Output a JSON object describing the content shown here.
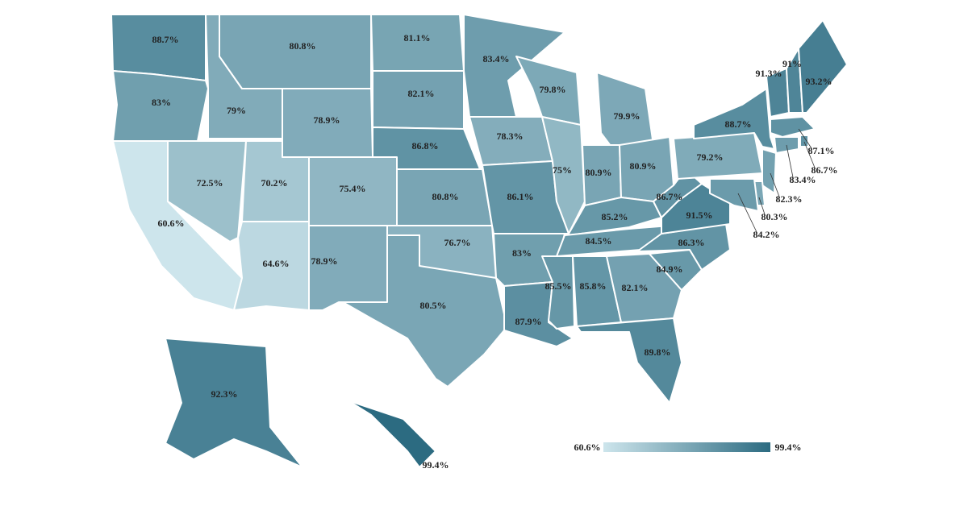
{
  "chart_data": {
    "type": "choropleth",
    "values": [
      88.7,
      83,
      60.6,
      72.5,
      79,
      80.8,
      78.9,
      70.2,
      64.6,
      75.4,
      78.9,
      81.1,
      82.1,
      86.8,
      80.8,
      76.7,
      80.5,
      83.4,
      78.3,
      86.1,
      83,
      87.9,
      79.8,
      75,
      79.9,
      80.9,
      80.9,
      85.2,
      84.5,
      85.5,
      85.8,
      82.1,
      89.8,
      84.9,
      86.3,
      91.5,
      86.7,
      79.2,
      88.7,
      91.3,
      91,
      93.2,
      87.1,
      86.7,
      83.4,
      82.3,
      80.3,
      84.2,
      92.3,
      99.4
    ],
    "value_labels": [
      "88.7%",
      "83%",
      "60.6%",
      "72.5%",
      "79%",
      "80.8%",
      "78.9%",
      "70.2%",
      "64.6%",
      "75.4%",
      "78.9%",
      "81.1%",
      "82.1%",
      "86.8%",
      "80.8%",
      "76.7%",
      "80.5%",
      "83.4%",
      "78.3%",
      "86.1%",
      "83%",
      "87.9%",
      "79.8%",
      "75%",
      "79.9%",
      "80.9%",
      "80.9%",
      "85.2%",
      "84.5%",
      "85.5%",
      "85.8%",
      "82.1%",
      "89.8%",
      "84.9%",
      "86.3%",
      "91.5%",
      "86.7%",
      "79.2%",
      "88.7%",
      "91.3%",
      "91%",
      "93.2%",
      "87.1%",
      "86.7%",
      "83.4%",
      "82.3%",
      "80.3%",
      "84.2%",
      "92.3%",
      "99.4%"
    ],
    "colors": [
      "#cde5ec",
      "#2c6b81"
    ],
    "legend_ticks": [
      {
        "value": 60.6,
        "label": "60.6%"
      },
      {
        "value": 99.4,
        "label": "99.4%"
      }
    ]
  }
}
